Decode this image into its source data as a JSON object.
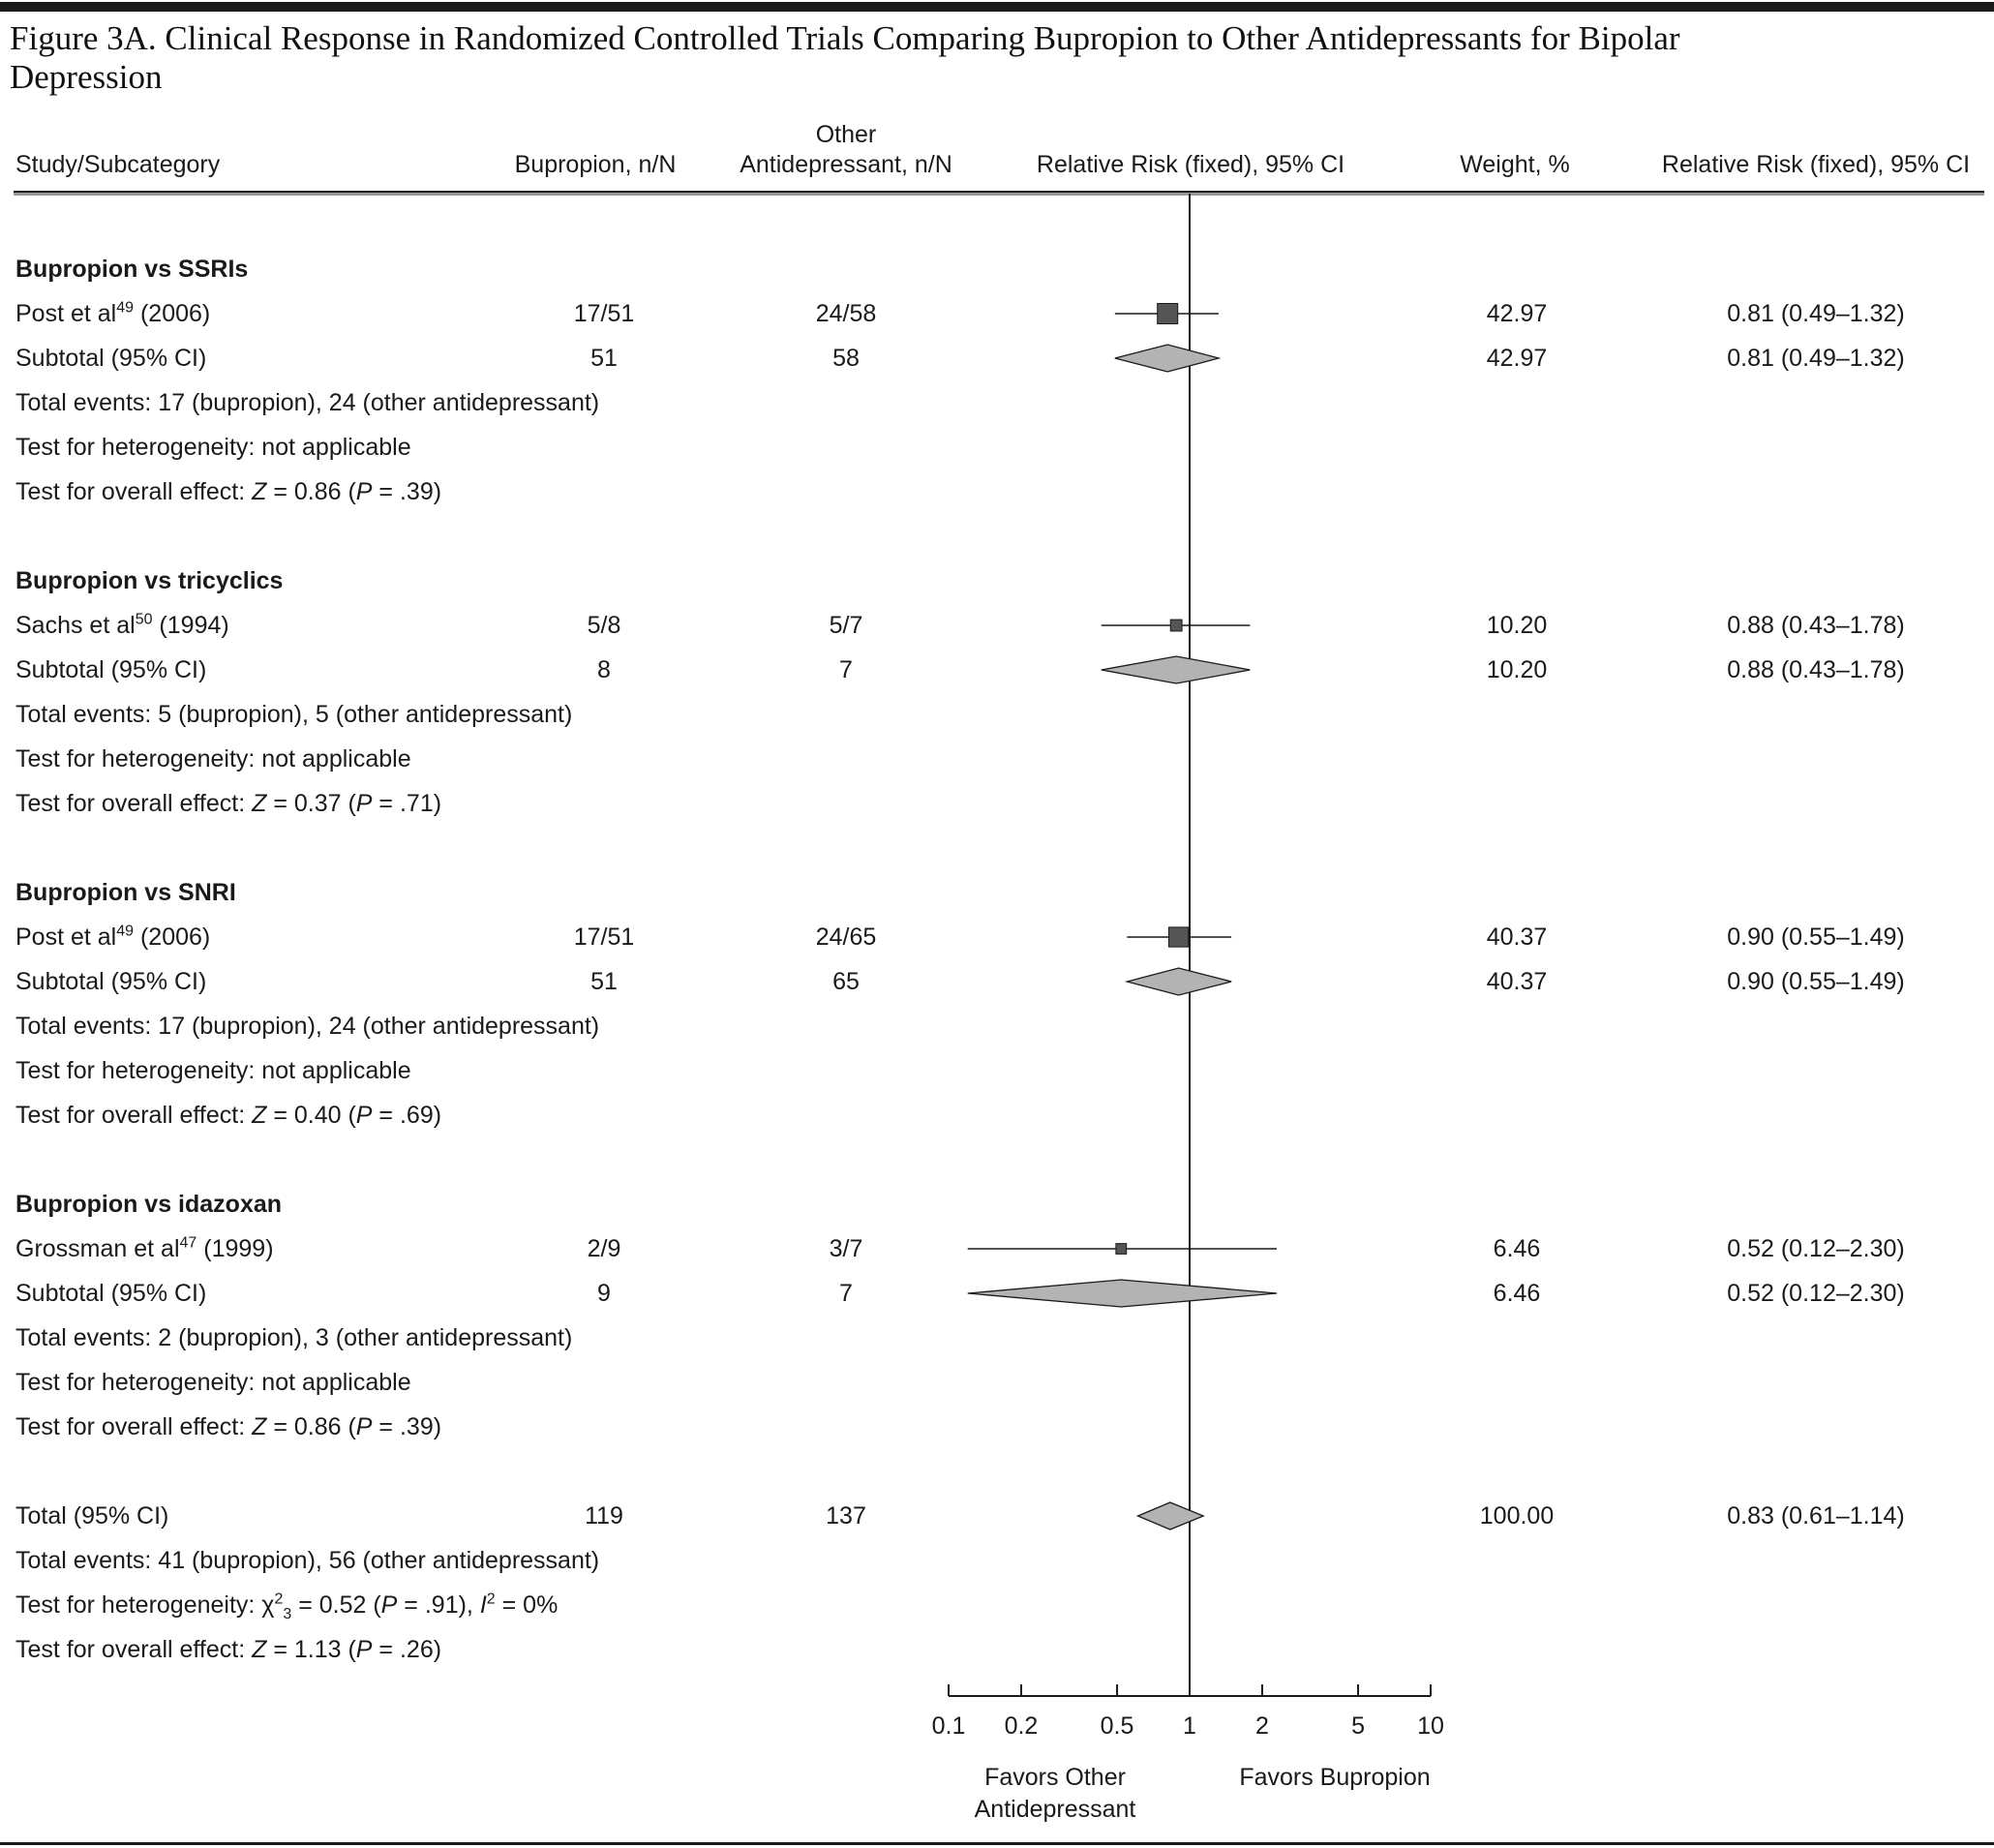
{
  "title": "Figure 3A. Clinical Response in Randomized Controlled Trials Comparing Bupropion to Other Antidepressants for Bipolar Depression",
  "headers": {
    "study": "Study/Subcategory",
    "bupropion": "Bupropion, n/N",
    "other_line1": "Other",
    "other_line2": "Antidepressant, n/N",
    "rr_plot": "Relative Risk (fixed), 95% CI",
    "weight": "Weight, %",
    "rr_text": "Relative Risk (fixed), 95% CI"
  },
  "chart_data": {
    "type": "forest",
    "x_scale": "log",
    "xlim": [
      0.1,
      10
    ],
    "x_ticks": [
      "0.1",
      "0.2",
      "0.5",
      "1",
      "2",
      "5",
      "10"
    ],
    "x_tick_values": [
      0.1,
      0.2,
      0.5,
      1,
      2,
      5,
      10
    ],
    "favors_left": [
      "Favors Other",
      "Antidepressant"
    ],
    "favors_right": "Favors Bupropion",
    "colors": {
      "square": "#555555",
      "diamond": "#b3b3b3",
      "line": "#1a1a1a"
    },
    "sections": [
      {
        "heading": "Bupropion vs SSRIs",
        "studies": [
          {
            "name": "Post et al",
            "ref": "49",
            "year": " (2006)",
            "bupropion": "17/51",
            "other": "24/58",
            "weight": "42.97",
            "rr_text": "0.81 (0.49–1.32)",
            "rr": 0.81,
            "lo": 0.49,
            "hi": 1.32
          }
        ],
        "subtotal": {
          "label": "Subtotal (95% CI)",
          "bupropion": "51",
          "other": "58",
          "weight": "42.97",
          "rr_text": "0.81 (0.49–1.32)",
          "rr": 0.81,
          "lo": 0.49,
          "hi": 1.32
        },
        "notes": [
          [
            {
              "t": "Total events: 17 (bupropion), 24 (other antidepressant)"
            }
          ],
          [
            {
              "t": "Test for heterogeneity: not applicable"
            }
          ],
          [
            {
              "t": "Test for overall effect: "
            },
            {
              "t": "Z",
              "i": true
            },
            {
              "t": " = 0.86 ("
            },
            {
              "t": "P",
              "i": true
            },
            {
              "t": " = .39)"
            }
          ]
        ]
      },
      {
        "heading": "Bupropion vs tricyclics",
        "studies": [
          {
            "name": "Sachs et al",
            "ref": "50",
            "year": " (1994)",
            "bupropion": "5/8",
            "other": "5/7",
            "weight": "10.20",
            "rr_text": "0.88 (0.43–1.78)",
            "rr": 0.88,
            "lo": 0.43,
            "hi": 1.78
          }
        ],
        "subtotal": {
          "label": "Subtotal (95% CI)",
          "bupropion": "8",
          "other": "7",
          "weight": "10.20",
          "rr_text": "0.88 (0.43–1.78)",
          "rr": 0.88,
          "lo": 0.43,
          "hi": 1.78
        },
        "notes": [
          [
            {
              "t": "Total events: 5 (bupropion), 5 (other antidepressant)"
            }
          ],
          [
            {
              "t": "Test for heterogeneity: not applicable"
            }
          ],
          [
            {
              "t": "Test for overall effect: "
            },
            {
              "t": "Z",
              "i": true
            },
            {
              "t": " = 0.37 ("
            },
            {
              "t": "P",
              "i": true
            },
            {
              "t": " = .71)"
            }
          ]
        ]
      },
      {
        "heading": "Bupropion vs SNRI",
        "studies": [
          {
            "name": "Post et al",
            "ref": "49",
            "year": " (2006)",
            "bupropion": "17/51",
            "other": "24/65",
            "weight": "40.37",
            "rr_text": "0.90 (0.55–1.49)",
            "rr": 0.9,
            "lo": 0.55,
            "hi": 1.49
          }
        ],
        "subtotal": {
          "label": "Subtotal (95% CI)",
          "bupropion": "51",
          "other": "65",
          "weight": "40.37",
          "rr_text": "0.90 (0.55–1.49)",
          "rr": 0.9,
          "lo": 0.55,
          "hi": 1.49
        },
        "notes": [
          [
            {
              "t": "Total events: 17 (bupropion), 24 (other antidepressant)"
            }
          ],
          [
            {
              "t": "Test for heterogeneity: not applicable"
            }
          ],
          [
            {
              "t": "Test for overall effect: "
            },
            {
              "t": "Z",
              "i": true
            },
            {
              "t": " = 0.40 ("
            },
            {
              "t": "P",
              "i": true
            },
            {
              "t": " = .69)"
            }
          ]
        ]
      },
      {
        "heading": "Bupropion vs idazoxan",
        "studies": [
          {
            "name": "Grossman et al",
            "ref": "47",
            "year": " (1999)",
            "bupropion": "2/9",
            "other": "3/7",
            "weight": "6.46",
            "rr_text": "0.52 (0.12–2.30)",
            "rr": 0.52,
            "lo": 0.12,
            "hi": 2.3
          }
        ],
        "subtotal": {
          "label": "Subtotal (95% CI)",
          "bupropion": "9",
          "other": "7",
          "weight": "6.46",
          "rr_text": "0.52 (0.12–2.30)",
          "rr": 0.52,
          "lo": 0.12,
          "hi": 2.3
        },
        "notes": [
          [
            {
              "t": "Total events: 2 (bupropion), 3 (other antidepressant)"
            }
          ],
          [
            {
              "t": "Test for heterogeneity: not applicable"
            }
          ],
          [
            {
              "t": "Test for overall effect: "
            },
            {
              "t": "Z",
              "i": true
            },
            {
              "t": " = 0.86 ("
            },
            {
              "t": "P",
              "i": true
            },
            {
              "t": " = .39)"
            }
          ]
        ]
      }
    ],
    "total": {
      "label": "Total (95% CI)",
      "bupropion": "119",
      "other": "137",
      "weight": "100.00",
      "rr_text": "0.83 (0.61–1.14)",
      "rr": 0.83,
      "lo": 0.61,
      "hi": 1.14,
      "notes": [
        [
          {
            "t": "Total events: 41 (bupropion), 56 (other antidepressant)"
          }
        ],
        [
          {
            "t": "Test for heterogeneity: χ"
          },
          {
            "t": "2",
            "sup": true
          },
          {
            "t": "3",
            "sub": true
          },
          {
            "t": " = 0.52 ("
          },
          {
            "t": "P",
            "i": true
          },
          {
            "t": " = .91), "
          },
          {
            "t": "I",
            "i": true
          },
          {
            "t": "2",
            "sup": true
          },
          {
            "t": " = 0%"
          }
        ],
        [
          {
            "t": "Test for overall effect: "
          },
          {
            "t": "Z",
            "i": true
          },
          {
            "t": " = 1.13 ("
          },
          {
            "t": "P",
            "i": true
          },
          {
            "t": " = .26)"
          }
        ]
      ]
    }
  }
}
